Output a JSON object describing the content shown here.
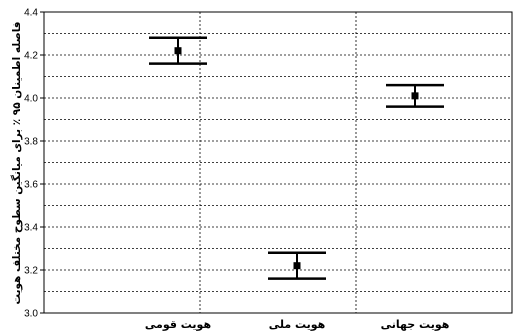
{
  "chart_data": {
    "type": "errorbar",
    "ylabel": "فاصله اطمینان ۹۵ ٪ برای میانگین سطوح مختلف هویت",
    "ylim": [
      3.0,
      4.4
    ],
    "yticks": [
      "3.0",
      "3.2",
      "3.4",
      "3.6",
      "3.8",
      "4.0",
      "4.2",
      "4.4"
    ],
    "grid": true,
    "categories": [
      "هویت قومی",
      "هویت ملی",
      "هویت جهانی"
    ],
    "points": [
      {
        "category": "هویت قومی",
        "mean": 4.22,
        "lower": 4.16,
        "upper": 4.28
      },
      {
        "category": "هویت ملی",
        "mean": 3.22,
        "lower": 3.16,
        "upper": 3.28
      },
      {
        "category": "هویت جهانی",
        "mean": 4.01,
        "lower": 3.96,
        "upper": 4.06
      }
    ]
  }
}
